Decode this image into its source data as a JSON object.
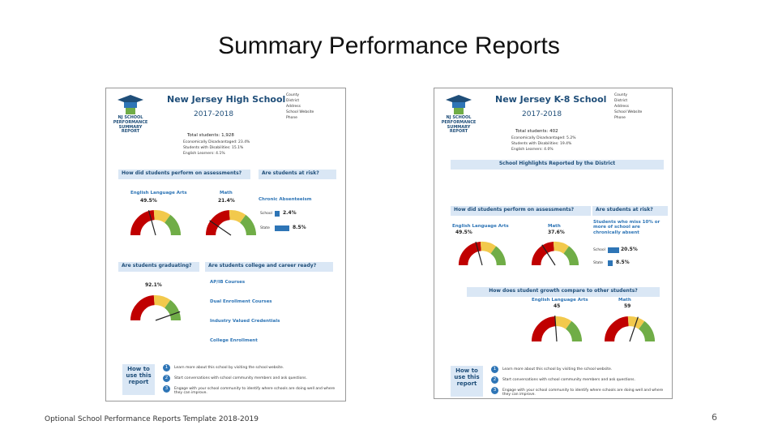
{
  "title": "Summary Performance Reports",
  "footer": "Optional School Performance Reports Template 2018-2019",
  "page_number": "6",
  "reports": [
    {
      "logo": "NJ SCHOOL PERFORMANCE SUMMARY REPORT",
      "name": "New Jersey High School",
      "year": "2017-2018",
      "contact": [
        "County",
        "District",
        "Address",
        "School Website",
        "Phone"
      ],
      "stats": [
        "Total students: 1,928",
        "Economically Disadvantaged: 23.4%",
        "Students with Disabilities: 15.1%",
        "English Learners: 4.1%"
      ],
      "sections": [
        "How did students perform on assessments?",
        "Are students at risk?",
        "Are students graduating?",
        "Are students college and career ready?"
      ],
      "subjects": [
        "English Language Arts",
        "Math"
      ],
      "gauge_values": [
        "49.5%",
        "21.4%"
      ],
      "risk_title": "Chronic Absenteeism",
      "risk_rows": [
        "School",
        "2.4%",
        "State",
        "8.5%"
      ],
      "graduation": "92.1%",
      "readiness": [
        "AP/IB Courses",
        "Dual Enrollment Courses",
        "Industry Valued Credentials",
        "College Enrollment"
      ],
      "how_to": "How to use this report",
      "steps": [
        "Learn more about this school by visiting the school website.",
        "Start conversations with school community members and ask questions.",
        "Engage with your school community to identify where schools are doing well and where they can improve."
      ]
    },
    {
      "logo": "NJ SCHOOL PERFORMANCE SUMMARY REPORT",
      "name": "New Jersey K-8 School",
      "year": "2017-2018",
      "contact": [
        "County",
        "District",
        "Address",
        "School Website",
        "Phone"
      ],
      "stats": [
        "Total students: 402",
        "Economically Disadvantaged: 5.2%",
        "Students with Disabilities: 19.4%",
        "English Learners: 4.0%"
      ],
      "sections": [
        "School Highlights Reported by the District",
        "How did students perform on assessments?",
        "Are students at risk?",
        "How does student growth compare to other students?"
      ],
      "subjects": [
        "English Language Arts",
        "Math"
      ],
      "gauge_values": [
        "49.5%",
        "37.6%"
      ],
      "risk_title": "Students who miss 10% or more of school are chronically absent",
      "risk_rows": [
        "School",
        "20.5%",
        "State",
        "8.5%"
      ],
      "growth_values": [
        "45",
        "59"
      ],
      "how_to": "How to use this report",
      "steps": [
        "Learn more about this school by visiting the school website.",
        "Start conversations with school community members and ask questions.",
        "Engage with your school community to identify where schools are doing well and where they can improve."
      ]
    }
  ]
}
